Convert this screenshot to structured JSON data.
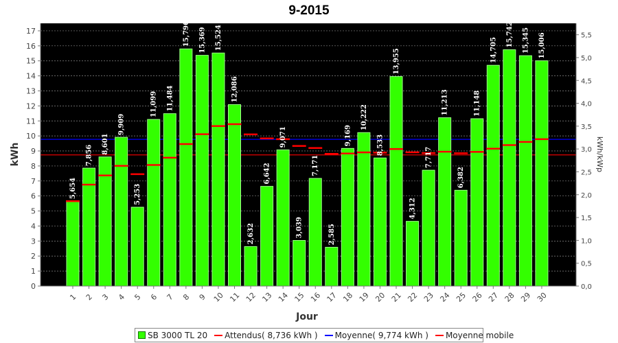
{
  "chart_data": {
    "type": "bar",
    "title": "9-2015",
    "xlabel": "Jour",
    "ylabel": "kWh",
    "y2label": "kWh/kWp",
    "ylim": [
      0,
      17.5
    ],
    "y2lim": [
      0,
      5.75
    ],
    "yticks": [
      "0",
      "1",
      "2",
      "3",
      "4",
      "5",
      "6",
      "7",
      "8",
      "9",
      "10",
      "11",
      "12",
      "13",
      "14",
      "15",
      "16",
      "17"
    ],
    "y2ticks": [
      "0,0",
      "0,5",
      "1,0",
      "1,5",
      "2,0",
      "2,5",
      "3,0",
      "3,5",
      "4,0",
      "4,5",
      "5,0",
      "5,5"
    ],
    "grid": true,
    "legend_position": "bottom",
    "categories": [
      "1",
      "2",
      "3",
      "4",
      "5",
      "6",
      "7",
      "8",
      "9",
      "10",
      "11",
      "12",
      "13",
      "14",
      "15",
      "16",
      "17",
      "18",
      "19",
      "20",
      "21",
      "22",
      "23",
      "24",
      "25",
      "26",
      "27",
      "28",
      "29",
      "30"
    ],
    "series": [
      {
        "name": "SB 3000 TL 20",
        "kind": "bar",
        "color": "#33ff00",
        "values": [
          5.654,
          7.856,
          8.601,
          9.909,
          5.253,
          11.099,
          11.484,
          15.796,
          15.369,
          15.524,
          12.086,
          2.632,
          6.642,
          9.071,
          3.039,
          7.171,
          2.585,
          9.169,
          10.222,
          8.533,
          13.955,
          4.312,
          7.717,
          11.213,
          6.382,
          11.148,
          14.705,
          15.742,
          15.345,
          15.006
        ],
        "labels": [
          "5,654",
          "7,856",
          "8,601",
          "9,909",
          "5,253",
          "11,099",
          "11,484",
          "15,796",
          "15,369",
          "15,524",
          "12,086",
          "2,632",
          "6,642",
          "9,071",
          "3,039",
          "7,171",
          "2,585",
          "9,169",
          "10,222",
          "8,533",
          "13,955",
          "4,312",
          "7,717",
          "11,213",
          "6,382",
          "11,148",
          "14,705",
          "15,742",
          "15,345",
          "15,006"
        ]
      },
      {
        "name": "Attendus( 8,736 kWh )",
        "kind": "hline",
        "color": "#ff0000",
        "value": 8.736
      },
      {
        "name": "Moyenne( 9,774 kWh )",
        "kind": "hline",
        "color": "#0000ff",
        "value": 9.774
      },
      {
        "name": "Moyenne mobile",
        "kind": "marker",
        "color": "#ff0000",
        "values": [
          5.654,
          6.755,
          7.37,
          8.005,
          7.455,
          8.062,
          8.551,
          9.457,
          10.115,
          10.655,
          10.785,
          10.105,
          9.838,
          9.783,
          9.334,
          9.196,
          8.807,
          8.829,
          8.907,
          8.888,
          9.127,
          8.908,
          8.856,
          8.951,
          8.849,
          8.937,
          9.151,
          9.387,
          9.601,
          9.781
        ]
      }
    ]
  }
}
